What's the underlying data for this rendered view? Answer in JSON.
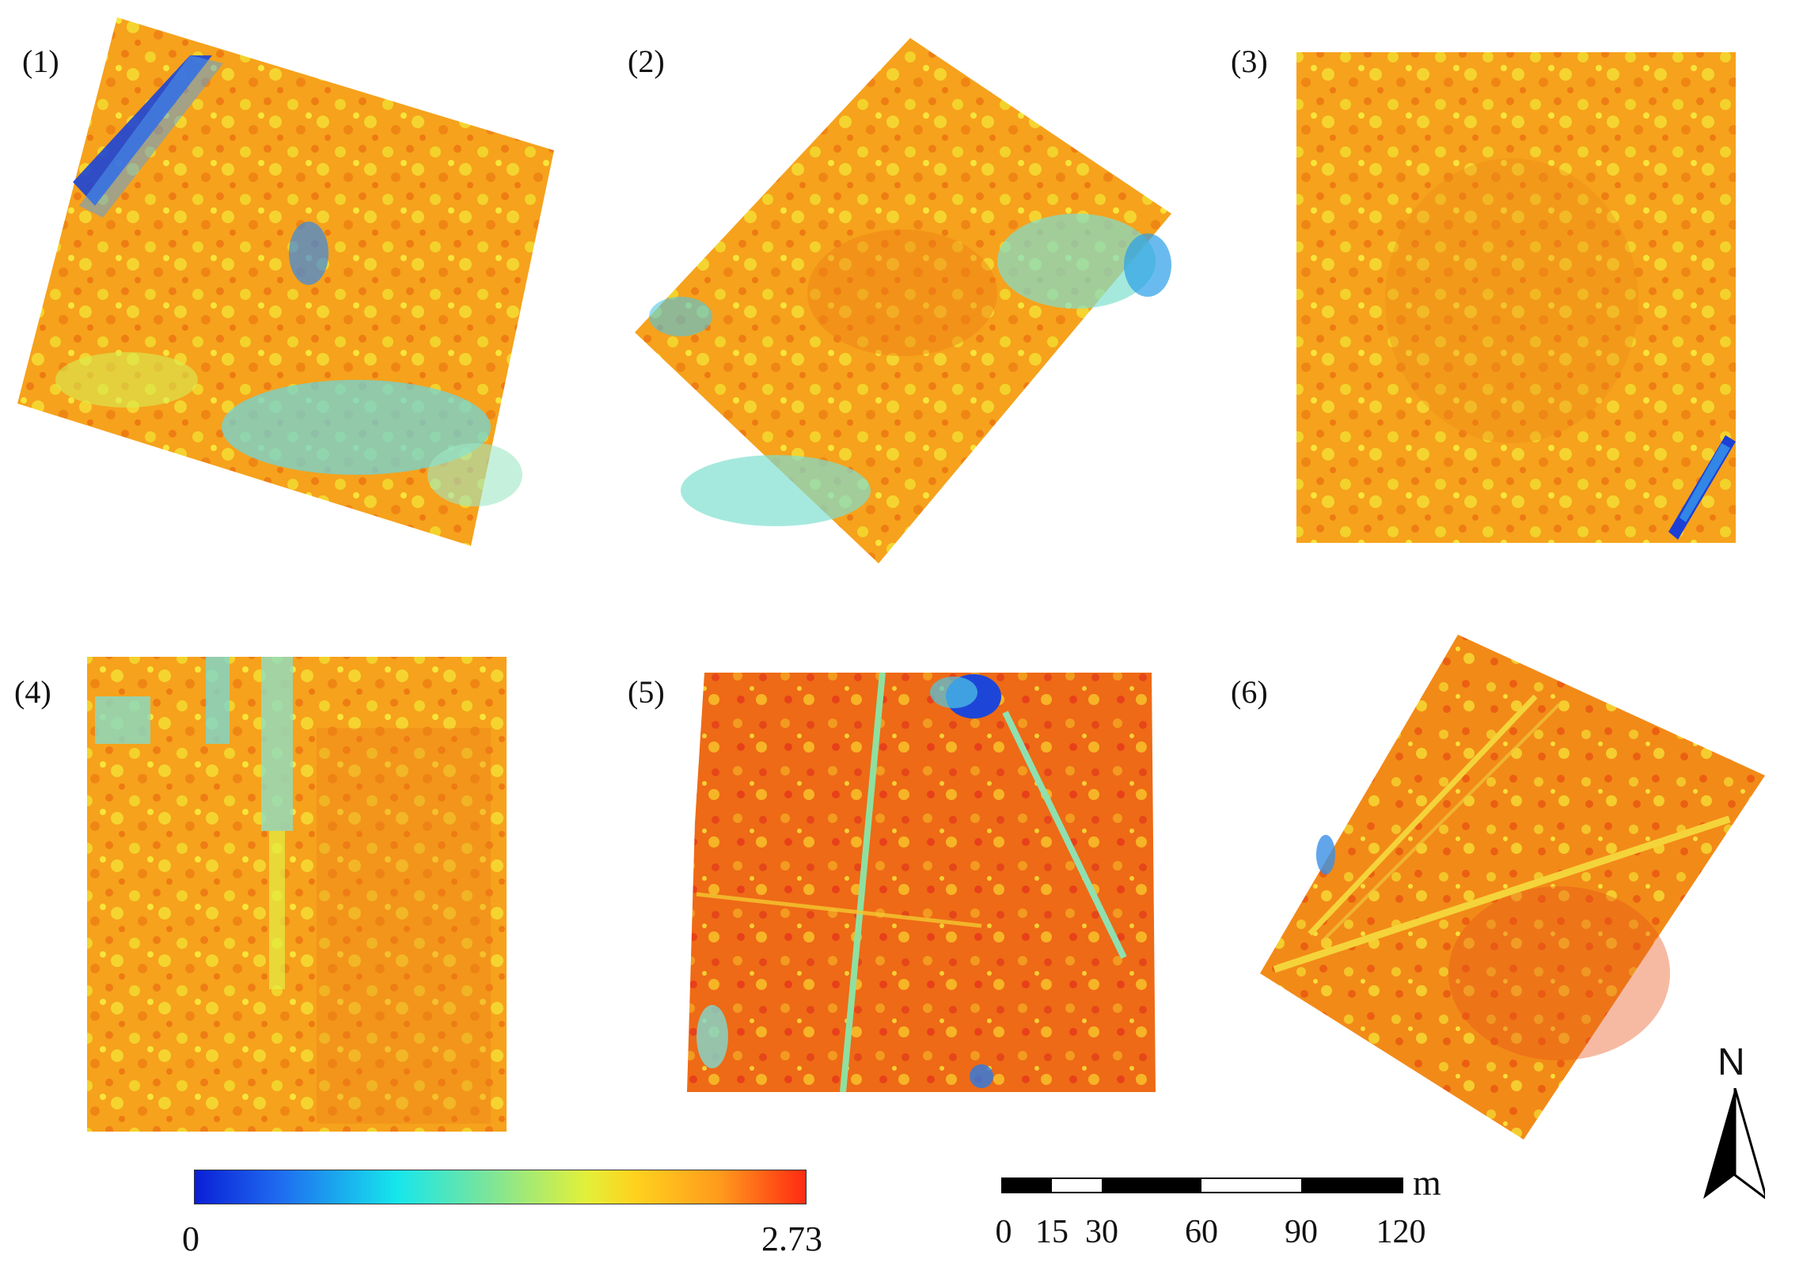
{
  "panels": [
    {
      "label": "(1)"
    },
    {
      "label": "(2)"
    },
    {
      "label": "(3)"
    },
    {
      "label": "(4)"
    },
    {
      "label": "(5)"
    },
    {
      "label": "(6)"
    }
  ],
  "legend": {
    "min_label": "0",
    "max_label": "2.73",
    "colors": [
      "#0a1fd6",
      "#1f6cf0",
      "#16e6ec",
      "#7be59a",
      "#e2f03a",
      "#ffd21e",
      "#ff9a1c",
      "#ff2a12"
    ]
  },
  "scale_bar": {
    "ticks": [
      "0",
      "15",
      "30",
      "60",
      "90",
      "120"
    ],
    "unit": "m"
  },
  "north_arrow": {
    "label": "N",
    "icon": "north-arrow-icon"
  }
}
